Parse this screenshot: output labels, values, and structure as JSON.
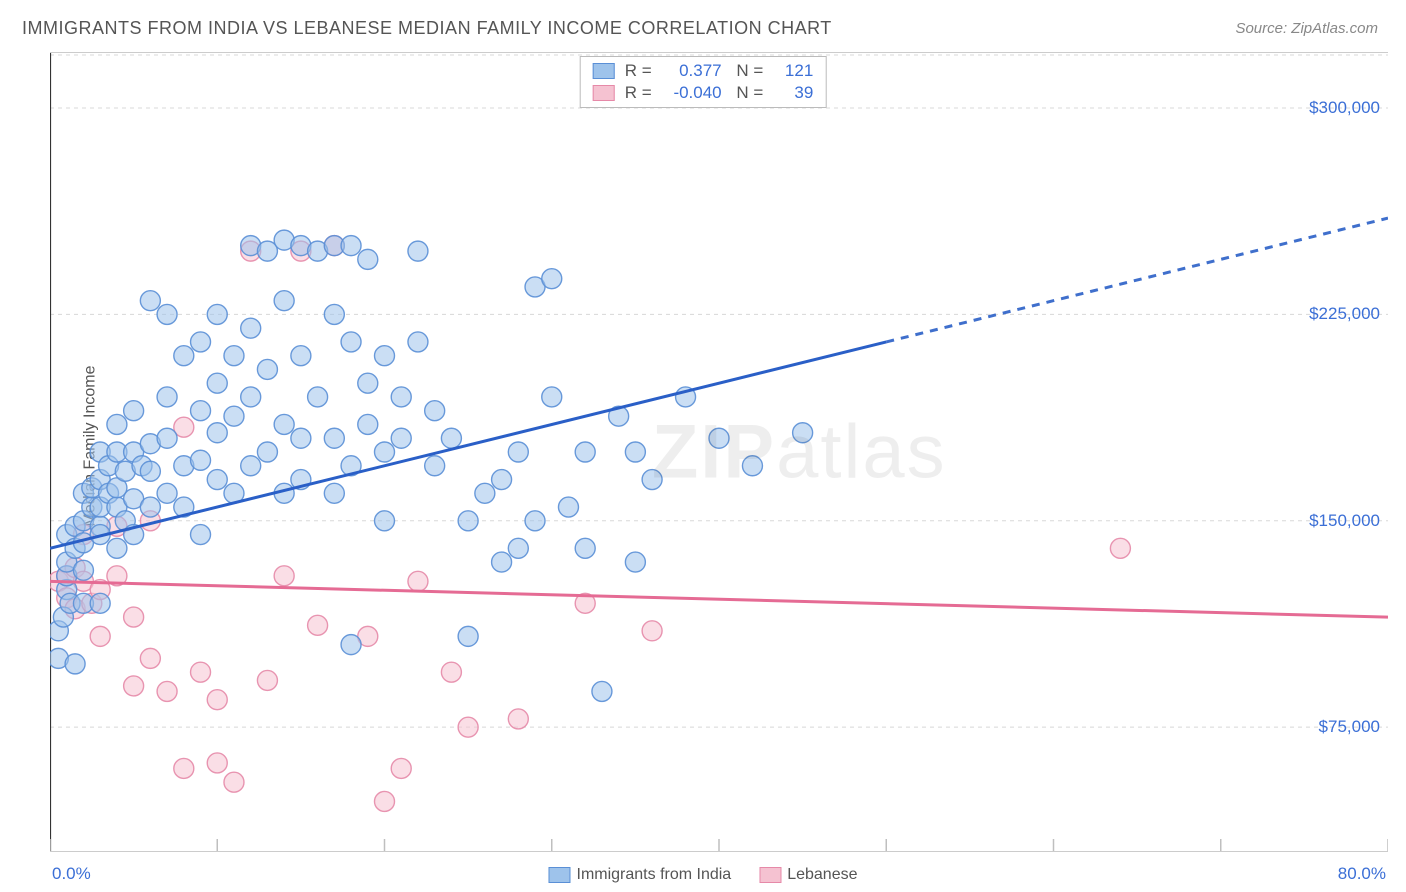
{
  "title": "IMMIGRANTS FROM INDIA VS LEBANESE MEDIAN FAMILY INCOME CORRELATION CHART",
  "source": "Source: ZipAtlas.com",
  "ylabel": "Median Family Income",
  "watermark_bold": "ZIP",
  "watermark_rest": "atlas",
  "chart": {
    "type": "scatter",
    "background_color": "#ffffff",
    "grid_color": "#d8d8d8",
    "grid_dash": "4,4",
    "axis_color": "#bfbfbf",
    "tick_color": "#bfbfbf",
    "tick_label_color": "#3b6fd6",
    "tick_label_fontsize": 17,
    "title_fontsize": 18,
    "title_color": "#555555",
    "ylabel_fontsize": 16,
    "xlim": [
      0,
      80
    ],
    "ylim": [
      30000,
      320000
    ],
    "xtick_positions": [
      0,
      10,
      20,
      30,
      40,
      50,
      60,
      70,
      80
    ],
    "xtick_labels_shown": {
      "0": "0.0%",
      "80": "80.0%"
    },
    "ytick_positions": [
      75000,
      150000,
      225000,
      300000
    ],
    "ytick_labels": [
      "$75,000",
      "$150,000",
      "$225,000",
      "$300,000"
    ],
    "marker_radius": 10,
    "marker_opacity": 0.55,
    "line_width": 3,
    "series": [
      {
        "name": "Immigrants from India",
        "fill_color": "#9ec3eb",
        "stroke_color": "#5a8fd6",
        "line_color": "#2a5fc7",
        "R": "0.377",
        "N": "121",
        "trend": {
          "x1": 0,
          "y1": 140000,
          "x2": 80,
          "y2": 260000,
          "solid_until_x": 50
        },
        "points": [
          [
            0.5,
            100000
          ],
          [
            0.5,
            110000
          ],
          [
            0.8,
            115000
          ],
          [
            1,
            125000
          ],
          [
            1,
            130000
          ],
          [
            1,
            135000
          ],
          [
            1,
            145000
          ],
          [
            1.2,
            120000
          ],
          [
            1.5,
            140000
          ],
          [
            1.5,
            148000
          ],
          [
            1.5,
            98000
          ],
          [
            2,
            132000
          ],
          [
            2,
            150000
          ],
          [
            2,
            160000
          ],
          [
            2,
            142000
          ],
          [
            2,
            120000
          ],
          [
            2.5,
            155000
          ],
          [
            2.5,
            162000
          ],
          [
            3,
            148000
          ],
          [
            3,
            155000
          ],
          [
            3,
            165000
          ],
          [
            3,
            175000
          ],
          [
            3,
            145000
          ],
          [
            3,
            120000
          ],
          [
            3.5,
            160000
          ],
          [
            3.5,
            170000
          ],
          [
            4,
            140000
          ],
          [
            4,
            155000
          ],
          [
            4,
            162000
          ],
          [
            4,
            175000
          ],
          [
            4,
            185000
          ],
          [
            4.5,
            150000
          ],
          [
            4.5,
            168000
          ],
          [
            5,
            145000
          ],
          [
            5,
            175000
          ],
          [
            5,
            190000
          ],
          [
            5,
            158000
          ],
          [
            5.5,
            170000
          ],
          [
            6,
            230000
          ],
          [
            6,
            155000
          ],
          [
            6,
            168000
          ],
          [
            6,
            178000
          ],
          [
            7,
            160000
          ],
          [
            7,
            225000
          ],
          [
            7,
            195000
          ],
          [
            7,
            180000
          ],
          [
            8,
            210000
          ],
          [
            8,
            170000
          ],
          [
            8,
            155000
          ],
          [
            9,
            215000
          ],
          [
            9,
            190000
          ],
          [
            9,
            172000
          ],
          [
            9,
            145000
          ],
          [
            10,
            225000
          ],
          [
            10,
            200000
          ],
          [
            10,
            165000
          ],
          [
            10,
            182000
          ],
          [
            11,
            210000
          ],
          [
            11,
            188000
          ],
          [
            11,
            160000
          ],
          [
            12,
            250000
          ],
          [
            12,
            195000
          ],
          [
            12,
            170000
          ],
          [
            12,
            220000
          ],
          [
            13,
            248000
          ],
          [
            13,
            175000
          ],
          [
            13,
            205000
          ],
          [
            14,
            230000
          ],
          [
            14,
            252000
          ],
          [
            14,
            185000
          ],
          [
            14,
            160000
          ],
          [
            15,
            250000
          ],
          [
            15,
            210000
          ],
          [
            15,
            180000
          ],
          [
            15,
            165000
          ],
          [
            16,
            248000
          ],
          [
            16,
            195000
          ],
          [
            17,
            250000
          ],
          [
            17,
            225000
          ],
          [
            17,
            180000
          ],
          [
            17,
            160000
          ],
          [
            18,
            250000
          ],
          [
            18,
            215000
          ],
          [
            18,
            170000
          ],
          [
            18,
            105000
          ],
          [
            19,
            245000
          ],
          [
            19,
            200000
          ],
          [
            19,
            185000
          ],
          [
            20,
            210000
          ],
          [
            20,
            175000
          ],
          [
            20,
            150000
          ],
          [
            21,
            195000
          ],
          [
            21,
            180000
          ],
          [
            22,
            248000
          ],
          [
            22,
            215000
          ],
          [
            23,
            170000
          ],
          [
            23,
            190000
          ],
          [
            24,
            180000
          ],
          [
            25,
            150000
          ],
          [
            25,
            108000
          ],
          [
            26,
            160000
          ],
          [
            27,
            135000
          ],
          [
            27,
            165000
          ],
          [
            28,
            140000
          ],
          [
            28,
            175000
          ],
          [
            29,
            235000
          ],
          [
            29,
            150000
          ],
          [
            30,
            238000
          ],
          [
            30,
            195000
          ],
          [
            31,
            155000
          ],
          [
            32,
            175000
          ],
          [
            32,
            140000
          ],
          [
            33,
            88000
          ],
          [
            34,
            188000
          ],
          [
            35,
            135000
          ],
          [
            35,
            175000
          ],
          [
            36,
            165000
          ],
          [
            38,
            195000
          ],
          [
            40,
            180000
          ],
          [
            42,
            170000
          ],
          [
            45,
            182000
          ]
        ]
      },
      {
        "name": "Lebanese",
        "fill_color": "#f5c2d1",
        "stroke_color": "#e689a8",
        "line_color": "#e56b94",
        "R": "-0.040",
        "N": "39",
        "trend": {
          "x1": 0,
          "y1": 128000,
          "x2": 80,
          "y2": 115000,
          "solid_until_x": 80
        },
        "points": [
          [
            0.5,
            128000
          ],
          [
            1,
            130000
          ],
          [
            1,
            122000
          ],
          [
            1.5,
            133000
          ],
          [
            1.5,
            118000
          ],
          [
            2,
            128000
          ],
          [
            2,
            145000
          ],
          [
            2.5,
            120000
          ],
          [
            3,
            125000
          ],
          [
            3,
            108000
          ],
          [
            4,
            130000
          ],
          [
            4,
            148000
          ],
          [
            5,
            115000
          ],
          [
            5,
            90000
          ],
          [
            6,
            150000
          ],
          [
            6,
            100000
          ],
          [
            7,
            88000
          ],
          [
            8,
            184000
          ],
          [
            8,
            60000
          ],
          [
            9,
            95000
          ],
          [
            10,
            85000
          ],
          [
            10,
            62000
          ],
          [
            11,
            55000
          ],
          [
            12,
            248000
          ],
          [
            13,
            92000
          ],
          [
            14,
            130000
          ],
          [
            15,
            248000
          ],
          [
            16,
            112000
          ],
          [
            17,
            250000
          ],
          [
            19,
            108000
          ],
          [
            20,
            48000
          ],
          [
            21,
            60000
          ],
          [
            22,
            128000
          ],
          [
            24,
            95000
          ],
          [
            25,
            75000
          ],
          [
            28,
            78000
          ],
          [
            32,
            120000
          ],
          [
            36,
            110000
          ],
          [
            64,
            140000
          ]
        ]
      }
    ]
  },
  "bottom_legend": [
    {
      "label": "Immigrants from India",
      "fill": "#9ec3eb",
      "stroke": "#5a8fd6"
    },
    {
      "label": "Lebanese",
      "fill": "#f5c2d1",
      "stroke": "#e689a8"
    }
  ]
}
